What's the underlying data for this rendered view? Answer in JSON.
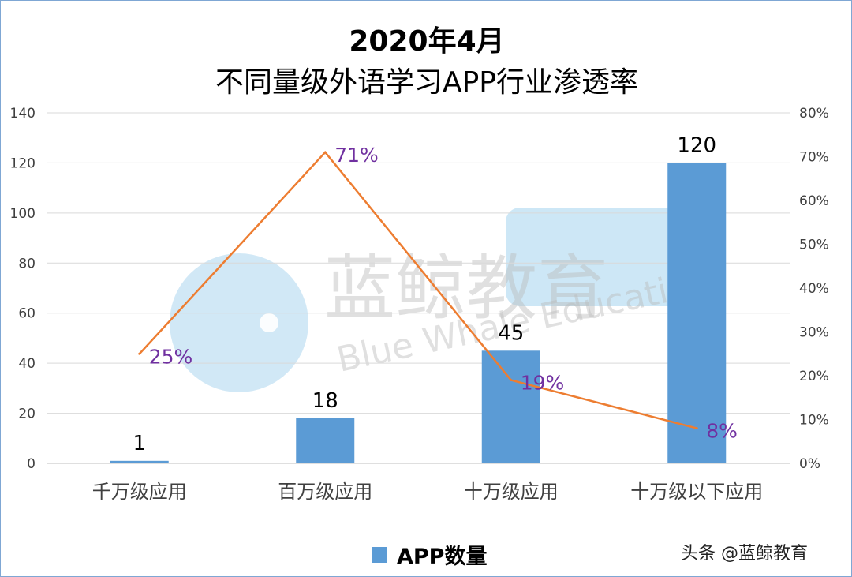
{
  "chart_data": {
    "type": "bar",
    "title": "2020年4月",
    "subtitle": "不同量级外语学习APP行业渗透率",
    "categories": [
      "千万级应用",
      "百万级应用",
      "十万级应用",
      "十万级以下应用"
    ],
    "series": [
      {
        "name": "APP数量",
        "type": "bar",
        "axis": "left",
        "values": [
          1,
          18,
          45,
          120
        ],
        "data_labels": [
          "1",
          "18",
          "45",
          "120"
        ],
        "color": "#5b9bd5"
      },
      {
        "type": "line",
        "axis": "right",
        "values": [
          25,
          71,
          19,
          8
        ],
        "data_labels": [
          "25%",
          "71%",
          "19%",
          "8%"
        ],
        "color": "#ed7d31",
        "label_color": "#7030a0"
      }
    ],
    "y_left": {
      "range": [
        0,
        140
      ],
      "ticks": [
        "0",
        "20",
        "40",
        "60",
        "80",
        "100",
        "120",
        "140"
      ]
    },
    "y_right": {
      "range": [
        0,
        80
      ],
      "unit": "%",
      "ticks": [
        "0%",
        "10%",
        "20%",
        "30%",
        "40%",
        "50%",
        "60%",
        "70%",
        "80%"
      ]
    },
    "grid": true,
    "legend": "bottom"
  },
  "source": "头条 @蓝鲸教育",
  "watermark": {
    "text_cn": "蓝鲸教育",
    "text_en": "Blue Whale Education"
  }
}
